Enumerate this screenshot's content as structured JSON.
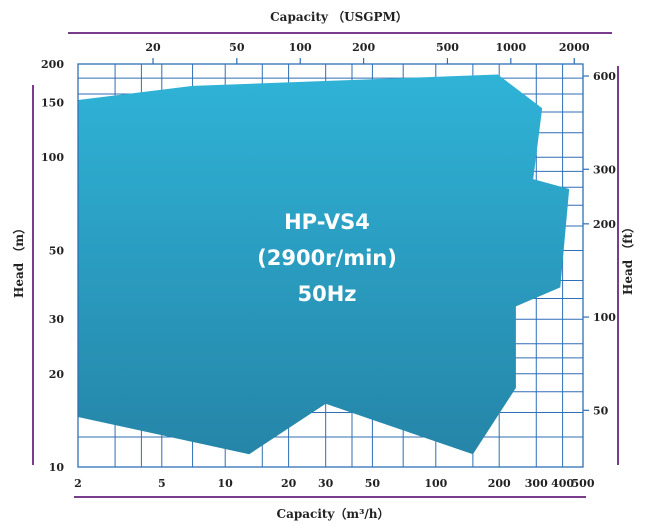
{
  "chart_data": {
    "type": "area",
    "region_label": [
      "HP-VS4",
      "(2900r/min)",
      "50Hz"
    ],
    "bottom_axis": {
      "title": "Capacity（m³/h）",
      "scale": "log",
      "range": [
        2,
        500
      ],
      "ticks": [
        2,
        5,
        10,
        20,
        30,
        50,
        100,
        200,
        300,
        400,
        500
      ],
      "tick_labels": [
        "2",
        "5",
        "10",
        "20",
        "30",
        "50",
        "100",
        "200",
        "300",
        "400",
        "500"
      ]
    },
    "top_axis": {
      "title": "Capacity （USGPM）",
      "scale": "log",
      "ticks": [
        20,
        50,
        100,
        200,
        500,
        1000,
        2000
      ],
      "tick_labels": [
        "20",
        "50",
        "100",
        "200",
        "500",
        "1000",
        "2000"
      ]
    },
    "left_axis": {
      "title": "Head （m）",
      "scale": "log",
      "range": [
        10,
        200
      ],
      "ticks": [
        10,
        20,
        30,
        50,
        100,
        150,
        200
      ],
      "tick_labels": [
        "10",
        "20",
        "30",
        "50",
        "100",
        "150",
        "200"
      ]
    },
    "right_axis": {
      "title": "Head （ft）",
      "scale": "log",
      "ticks": [
        50,
        100,
        200,
        300,
        600
      ],
      "tick_labels": [
        "50",
        "100",
        "200",
        "300",
        "600"
      ]
    },
    "grid_x": [
      2,
      3,
      4,
      5,
      7,
      10,
      15,
      20,
      30,
      40,
      50,
      70,
      100,
      150,
      200,
      300,
      400,
      500
    ],
    "grid_y": [
      10,
      12.5,
      15,
      17.5,
      20,
      22.5,
      25,
      30,
      35,
      40,
      50,
      60,
      70,
      80,
      90,
      100,
      120,
      140,
      160,
      180,
      200
    ],
    "region_color": "#2fb3d7",
    "region_color_dark": "#2585a8",
    "line_color": "#2f6fb5",
    "region_polygon": [
      [
        2,
        153
      ],
      [
        7,
        170
      ],
      [
        197,
        185
      ],
      [
        320,
        144
      ],
      [
        290,
        85
      ],
      [
        430,
        79
      ],
      [
        390,
        38
      ],
      [
        240,
        33
      ],
      [
        240,
        18
      ],
      [
        150,
        11
      ],
      [
        30,
        16
      ],
      [
        13,
        11
      ],
      [
        2,
        14.5
      ]
    ]
  }
}
